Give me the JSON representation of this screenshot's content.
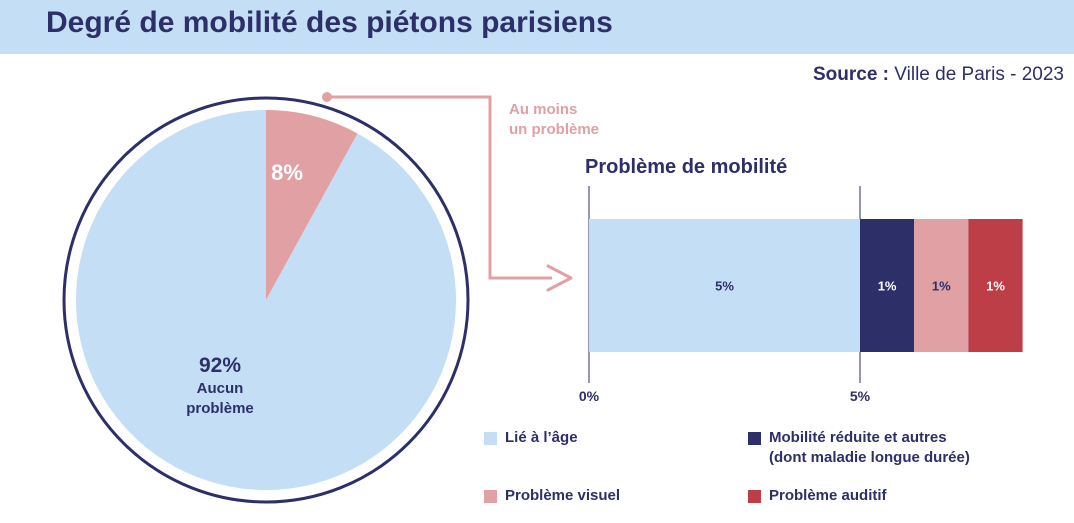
{
  "header": {
    "title": "Degré de mobilité des piétons parisiens",
    "source_label": "Source :",
    "source_value": " Ville de Paris - 2023"
  },
  "callout": {
    "line1": "Au moins",
    "line2": "un problème"
  },
  "colors": {
    "header_bg": "#c4def5",
    "navy": "#2d2f69",
    "light_blue": "#c4def5",
    "pink": "#e0a0a4",
    "red": "#be3e48"
  },
  "chart_data": [
    {
      "type": "pie",
      "slices": [
        {
          "label": "Aucun problème",
          "value": 92,
          "display": "92%",
          "color": "#c4def5"
        },
        {
          "label": "Au moins un problème",
          "value": 8,
          "display": "8%",
          "color": "#e0a0a4"
        }
      ]
    },
    {
      "type": "bar",
      "orientation": "horizontal-stacked",
      "title": "Problème de mobilité",
      "xlim": [
        0,
        8
      ],
      "ticks": [
        {
          "value": 0,
          "label": "0%"
        },
        {
          "value": 5,
          "label": "5%"
        }
      ],
      "segments": [
        {
          "name": "Lié à l’âge",
          "value": 5,
          "label": "5%",
          "color": "#c4def5",
          "text_color": "#2d2f69"
        },
        {
          "name": "Mobilité réduite et autres (dont maladie longue durée)",
          "value": 1,
          "label": "1%",
          "color": "#2d2f69",
          "text_color": "#ffffff"
        },
        {
          "name": "Problème visuel",
          "value": 1,
          "label": "1%",
          "color": "#e0a0a4",
          "text_color": "#2d2f69"
        },
        {
          "name": "Problème auditif",
          "value": 1,
          "label": "1%",
          "color": "#be3e48",
          "text_color": "#ffffff"
        }
      ]
    }
  ],
  "legend": [
    {
      "lines": [
        "Lié à l’âge"
      ],
      "color": "#c4def5"
    },
    {
      "lines": [
        "Mobilité réduite et autres",
        "(dont maladie longue durée)"
      ],
      "color": "#2d2f69"
    },
    {
      "lines": [
        "Problème visuel"
      ],
      "color": "#e0a0a4"
    },
    {
      "lines": [
        "Problème auditif"
      ],
      "color": "#be3e48"
    }
  ]
}
